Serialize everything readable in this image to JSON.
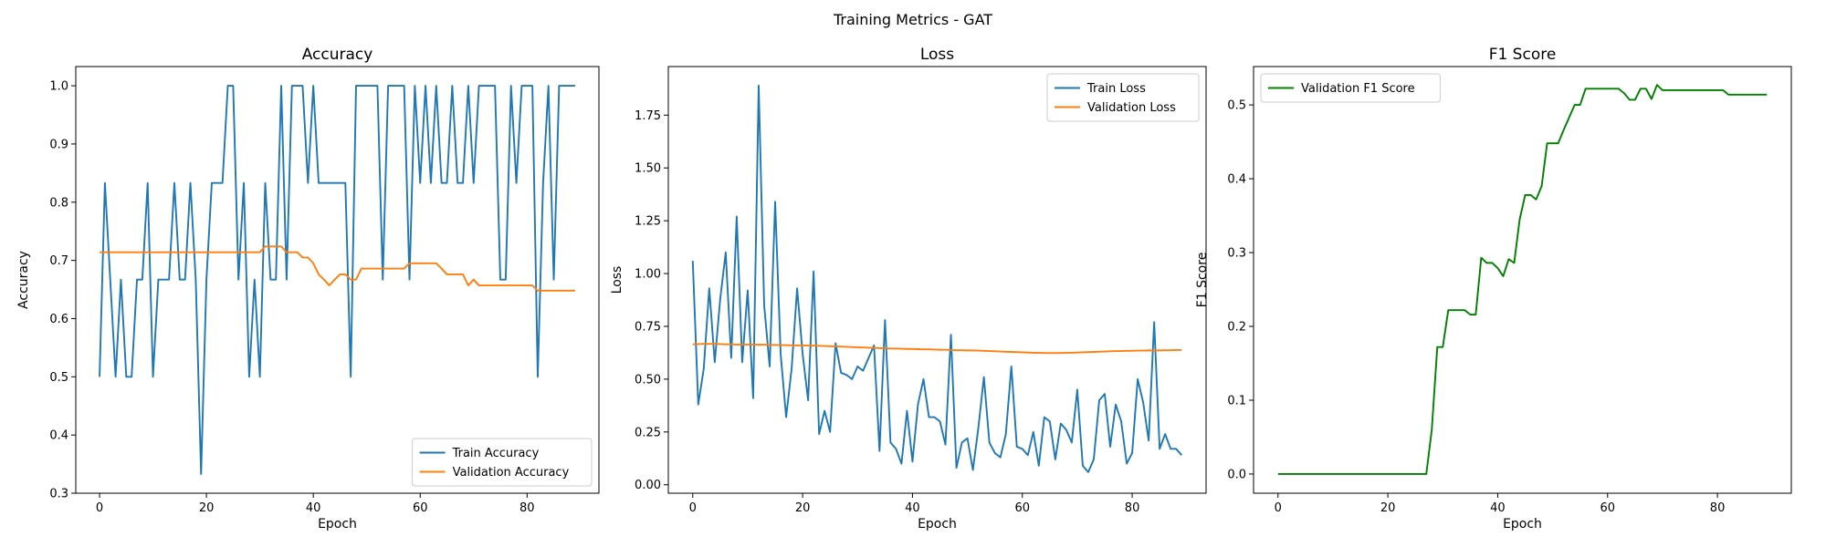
{
  "suptitle": "Training Metrics - GAT",
  "chart_data": [
    {
      "type": "line",
      "title": "Accuracy",
      "xlabel": "Epoch",
      "ylabel": "Accuracy",
      "xlim": [
        -4.45,
        93.45
      ],
      "ylim": [
        0.3,
        1.033
      ],
      "xticks": [
        0,
        20,
        40,
        60,
        80
      ],
      "yticks": [
        0.3,
        0.4,
        0.5,
        0.6,
        0.7,
        0.8,
        0.9,
        1.0
      ],
      "ytick_labels": [
        "0.3",
        "0.4",
        "0.5",
        "0.6",
        "0.7",
        "0.8",
        "0.9",
        "1.0"
      ],
      "legend": "lower-right",
      "grid": false,
      "series": [
        {
          "name": "Train Accuracy",
          "color": "#1f77b4",
          "values": [
            0.5,
            0.833,
            0.667,
            0.5,
            0.667,
            0.5,
            0.5,
            0.667,
            0.667,
            0.833,
            0.5,
            0.667,
            0.667,
            0.667,
            0.833,
            0.667,
            0.667,
            0.833,
            0.667,
            0.333,
            0.667,
            0.833,
            0.833,
            0.833,
            1.0,
            1.0,
            0.667,
            0.833,
            0.5,
            0.667,
            0.5,
            0.833,
            0.667,
            0.667,
            1.0,
            0.667,
            1.0,
            1.0,
            1.0,
            0.833,
            1.0,
            0.833,
            0.833,
            0.833,
            0.833,
            0.833,
            0.833,
            0.5,
            1.0,
            1.0,
            1.0,
            1.0,
            1.0,
            0.667,
            1.0,
            1.0,
            1.0,
            1.0,
            0.667,
            1.0,
            0.833,
            1.0,
            0.833,
            1.0,
            0.833,
            0.833,
            1.0,
            0.833,
            0.833,
            1.0,
            0.833,
            1.0,
            1.0,
            1.0,
            1.0,
            0.667,
            0.667,
            1.0,
            0.833,
            1.0,
            1.0,
            1.0,
            0.5,
            0.833,
            1.0,
            0.667,
            1.0,
            1.0,
            1.0,
            1.0
          ]
        },
        {
          "name": "Validation Accuracy",
          "color": "#ff7f0e",
          "values": [
            0.714,
            0.714,
            0.714,
            0.714,
            0.714,
            0.714,
            0.714,
            0.714,
            0.714,
            0.714,
            0.714,
            0.714,
            0.714,
            0.714,
            0.714,
            0.714,
            0.714,
            0.714,
            0.714,
            0.714,
            0.714,
            0.714,
            0.714,
            0.714,
            0.714,
            0.714,
            0.714,
            0.714,
            0.714,
            0.714,
            0.714,
            0.724,
            0.724,
            0.724,
            0.724,
            0.714,
            0.714,
            0.714,
            0.705,
            0.705,
            0.695,
            0.676,
            0.667,
            0.657,
            0.667,
            0.676,
            0.676,
            0.667,
            0.667,
            0.686,
            0.686,
            0.686,
            0.686,
            0.686,
            0.686,
            0.686,
            0.686,
            0.686,
            0.695,
            0.695,
            0.695,
            0.695,
            0.695,
            0.695,
            0.686,
            0.676,
            0.676,
            0.676,
            0.676,
            0.657,
            0.667,
            0.657,
            0.657,
            0.657,
            0.657,
            0.657,
            0.657,
            0.657,
            0.657,
            0.657,
            0.657,
            0.657,
            0.648,
            0.648,
            0.648,
            0.648,
            0.648,
            0.648,
            0.648,
            0.648
          ]
        }
      ]
    },
    {
      "type": "line",
      "title": "Loss",
      "xlabel": "Epoch",
      "ylabel": "Loss",
      "xlim": [
        -4.45,
        93.45
      ],
      "ylim": [
        -0.04,
        1.98
      ],
      "xticks": [
        0,
        20,
        40,
        60,
        80
      ],
      "yticks": [
        0.0,
        0.25,
        0.5,
        0.75,
        1.0,
        1.25,
        1.5,
        1.75
      ],
      "ytick_labels": [
        "0.00",
        "0.25",
        "0.50",
        "0.75",
        "1.00",
        "1.25",
        "1.50",
        "1.75"
      ],
      "legend": "upper-right",
      "grid": false,
      "series": [
        {
          "name": "Train Loss",
          "color": "#1f77b4",
          "values": [
            1.06,
            0.38,
            0.55,
            0.93,
            0.58,
            0.88,
            1.1,
            0.6,
            1.27,
            0.58,
            0.92,
            0.41,
            1.89,
            0.85,
            0.56,
            1.34,
            0.62,
            0.32,
            0.55,
            0.93,
            0.62,
            0.4,
            1.01,
            0.24,
            0.35,
            0.25,
            0.67,
            0.53,
            0.52,
            0.5,
            0.56,
            0.54,
            0.6,
            0.66,
            0.16,
            0.78,
            0.2,
            0.17,
            0.1,
            0.35,
            0.11,
            0.38,
            0.5,
            0.32,
            0.32,
            0.3,
            0.19,
            0.71,
            0.08,
            0.2,
            0.22,
            0.07,
            0.27,
            0.51,
            0.2,
            0.15,
            0.13,
            0.24,
            0.56,
            0.18,
            0.17,
            0.14,
            0.25,
            0.09,
            0.32,
            0.3,
            0.12,
            0.29,
            0.26,
            0.2,
            0.45,
            0.09,
            0.06,
            0.12,
            0.4,
            0.43,
            0.18,
            0.38,
            0.3,
            0.1,
            0.15,
            0.5,
            0.39,
            0.21,
            0.77,
            0.17,
            0.24,
            0.17,
            0.17,
            0.14
          ]
        },
        {
          "name": "Validation Loss",
          "color": "#ff7f0e",
          "values": [
            0.665,
            0.666,
            0.667,
            0.667,
            0.667,
            0.666,
            0.665,
            0.665,
            0.664,
            0.664,
            0.664,
            0.663,
            0.663,
            0.663,
            0.662,
            0.662,
            0.661,
            0.661,
            0.66,
            0.66,
            0.66,
            0.659,
            0.659,
            0.658,
            0.657,
            0.656,
            0.655,
            0.654,
            0.653,
            0.652,
            0.651,
            0.65,
            0.649,
            0.648,
            0.647,
            0.646,
            0.645,
            0.645,
            0.644,
            0.643,
            0.643,
            0.642,
            0.641,
            0.641,
            0.64,
            0.639,
            0.639,
            0.638,
            0.637,
            0.637,
            0.636,
            0.636,
            0.635,
            0.634,
            0.633,
            0.632,
            0.631,
            0.63,
            0.629,
            0.628,
            0.627,
            0.626,
            0.625,
            0.625,
            0.624,
            0.624,
            0.624,
            0.624,
            0.625,
            0.625,
            0.626,
            0.627,
            0.628,
            0.629,
            0.63,
            0.631,
            0.632,
            0.633,
            0.633,
            0.634,
            0.634,
            0.635,
            0.635,
            0.636,
            0.636,
            0.636,
            0.637,
            0.637,
            0.638,
            0.638
          ]
        }
      ]
    },
    {
      "type": "line",
      "title": "F1 Score",
      "xlabel": "Epoch",
      "ylabel": "F1 Score",
      "xlim": [
        -4.45,
        93.45
      ],
      "ylim": [
        -0.026,
        0.552
      ],
      "xticks": [
        0,
        20,
        40,
        60,
        80
      ],
      "yticks": [
        0.0,
        0.1,
        0.2,
        0.3,
        0.4,
        0.5
      ],
      "ytick_labels": [
        "0.0",
        "0.1",
        "0.2",
        "0.3",
        "0.4",
        "0.5"
      ],
      "legend": "upper-left",
      "grid": false,
      "series": [
        {
          "name": "Validation F1 Score",
          "color": "#008000",
          "values": [
            0.0,
            0.0,
            0.0,
            0.0,
            0.0,
            0.0,
            0.0,
            0.0,
            0.0,
            0.0,
            0.0,
            0.0,
            0.0,
            0.0,
            0.0,
            0.0,
            0.0,
            0.0,
            0.0,
            0.0,
            0.0,
            0.0,
            0.0,
            0.0,
            0.0,
            0.0,
            0.0,
            0.0,
            0.06,
            0.172,
            0.172,
            0.222,
            0.222,
            0.222,
            0.222,
            0.216,
            0.216,
            0.293,
            0.286,
            0.286,
            0.279,
            0.268,
            0.291,
            0.286,
            0.345,
            0.378,
            0.378,
            0.372,
            0.39,
            0.448,
            0.448,
            0.448,
            0.466,
            0.483,
            0.5,
            0.5,
            0.522,
            0.522,
            0.522,
            0.522,
            0.522,
            0.522,
            0.522,
            0.516,
            0.507,
            0.507,
            0.522,
            0.522,
            0.508,
            0.527,
            0.52,
            0.52,
            0.52,
            0.52,
            0.52,
            0.52,
            0.52,
            0.52,
            0.52,
            0.52,
            0.52,
            0.52,
            0.514,
            0.514,
            0.514,
            0.514,
            0.514,
            0.514,
            0.514,
            0.514
          ]
        }
      ]
    }
  ]
}
